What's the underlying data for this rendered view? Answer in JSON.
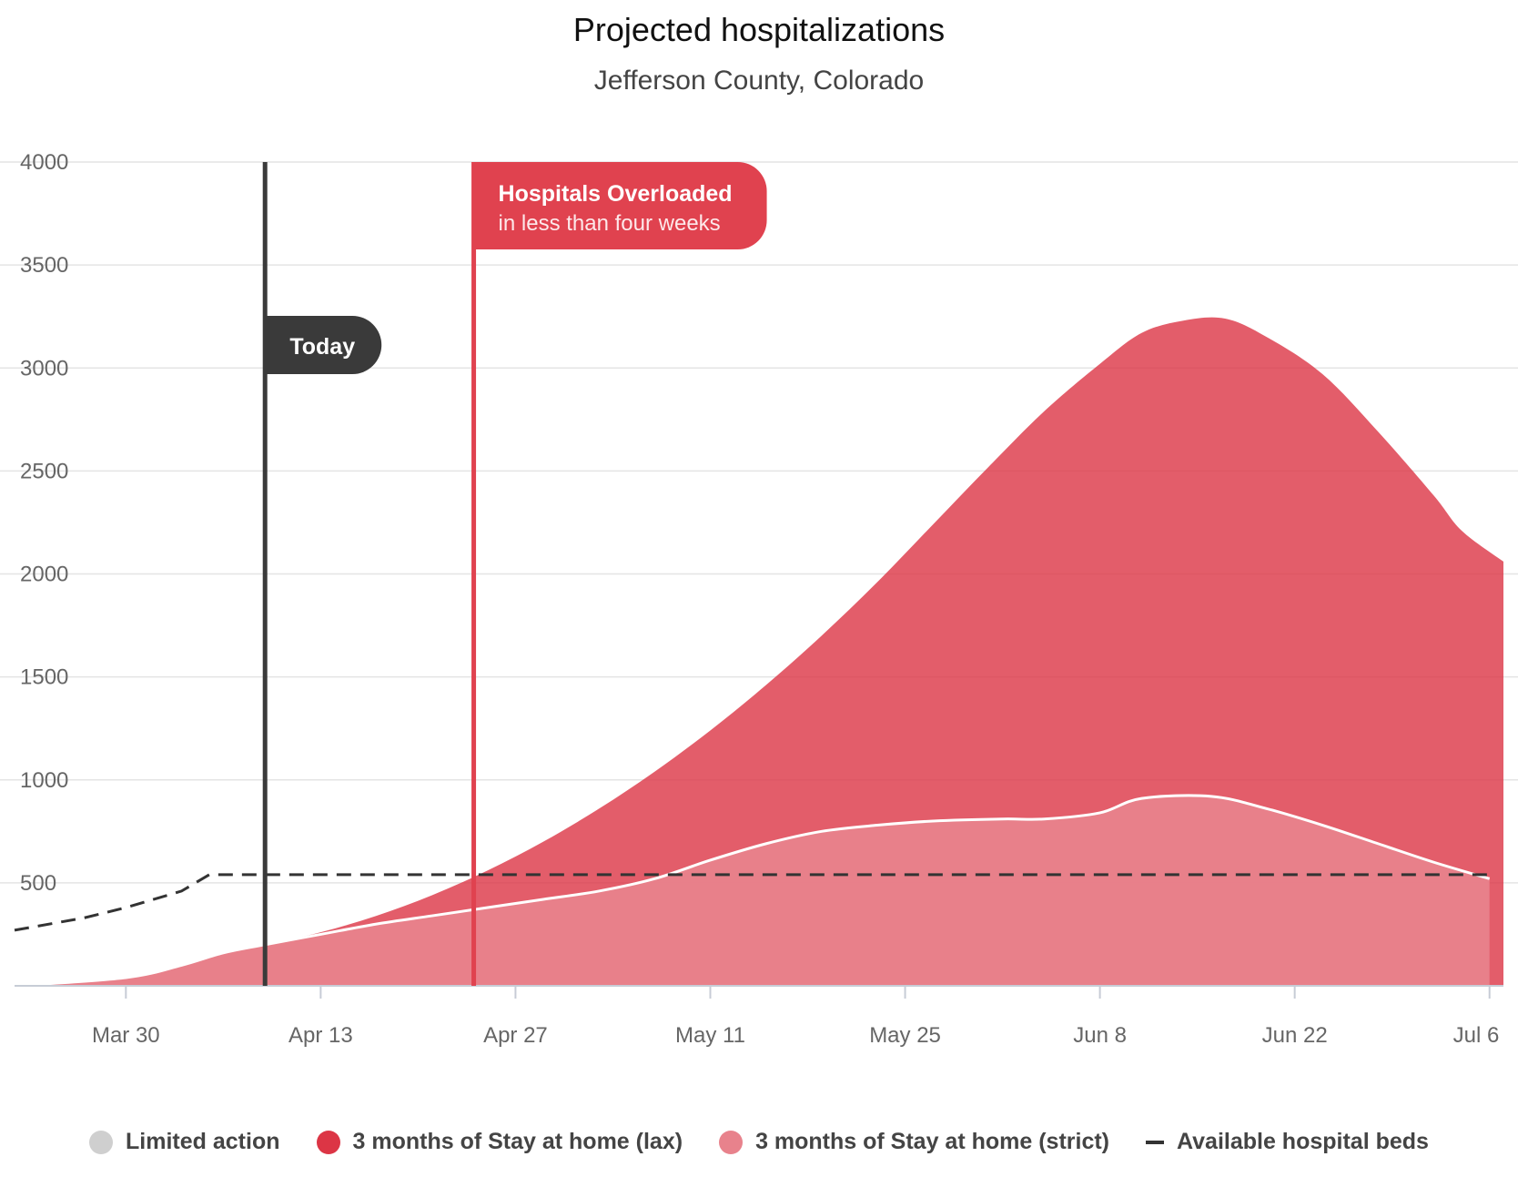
{
  "header": {
    "title": "Projected hospitalizations",
    "subtitle": "Jefferson County, Colorado"
  },
  "markers": {
    "today": {
      "label": "Today",
      "date": "Apr 9",
      "color": "#3a3a3a"
    },
    "overloaded": {
      "label": "Hospitals Overloaded",
      "sublabel": "in less than four weeks",
      "date": "Apr 24",
      "color": "#e0424f"
    }
  },
  "legend": [
    {
      "label": "Limited action",
      "color": "#cfcfcf",
      "shape": "circle"
    },
    {
      "label": "3 months of Stay at home (lax)",
      "color": "#dc3545",
      "shape": "circle"
    },
    {
      "label": "3 months of Stay at home (strict)",
      "color": "#e8828c",
      "shape": "circle"
    },
    {
      "label": "Available hospital beds",
      "color": "#333333",
      "shape": "dash"
    }
  ],
  "chart_data": {
    "type": "area",
    "x_ticks": [
      "Mar 30",
      "Apr 13",
      "Apr 27",
      "May 11",
      "May 25",
      "Jun 8",
      "Jun 22",
      "Jul 6"
    ],
    "y_ticks": [
      500,
      1000,
      1500,
      2000,
      2500,
      3000,
      3500,
      4000
    ],
    "ylim": [
      0,
      4000
    ],
    "xlim": [
      "Mar 22",
      "Jul 7"
    ],
    "grid": true,
    "legend_position": "bottom",
    "series": [
      {
        "name": "3 months of Stay at home (lax)",
        "color": "#dc3545",
        "points": [
          [
            "Mar 22",
            0
          ],
          [
            "Mar 30",
            40
          ],
          [
            "Apr 3",
            100
          ],
          [
            "Apr 6",
            160
          ],
          [
            "Apr 9",
            200
          ],
          [
            "Apr 13",
            260
          ],
          [
            "Apr 17",
            340
          ],
          [
            "Apr 21",
            440
          ],
          [
            "Apr 25",
            560
          ],
          [
            "Apr 29",
            700
          ],
          [
            "May 3",
            860
          ],
          [
            "May 7",
            1040
          ],
          [
            "May 11",
            1240
          ],
          [
            "May 15",
            1460
          ],
          [
            "May 19",
            1700
          ],
          [
            "May 23",
            1960
          ],
          [
            "May 27",
            2240
          ],
          [
            "May 31",
            2520
          ],
          [
            "Jun 4",
            2790
          ],
          [
            "Jun 8",
            3020
          ],
          [
            "Jun 11",
            3170
          ],
          [
            "Jun 14",
            3230
          ],
          [
            "Jun 17",
            3240
          ],
          [
            "Jun 20",
            3150
          ],
          [
            "Jun 24",
            2970
          ],
          [
            "Jun 28",
            2690
          ],
          [
            "Jul 2",
            2380
          ],
          [
            "Jul 4",
            2210
          ],
          [
            "Jul 7",
            2060
          ]
        ]
      },
      {
        "name": "3 months of Stay at home (strict)",
        "color": "#e8828c",
        "points": [
          [
            "Mar 22",
            0
          ],
          [
            "Mar 30",
            40
          ],
          [
            "Apr 3",
            100
          ],
          [
            "Apr 6",
            160
          ],
          [
            "Apr 9",
            200
          ],
          [
            "Apr 13",
            250
          ],
          [
            "Apr 17",
            300
          ],
          [
            "Apr 21",
            340
          ],
          [
            "Apr 25",
            380
          ],
          [
            "Apr 29",
            420
          ],
          [
            "May 3",
            460
          ],
          [
            "May 7",
            520
          ],
          [
            "May 11",
            610
          ],
          [
            "May 15",
            690
          ],
          [
            "May 19",
            750
          ],
          [
            "May 23",
            780
          ],
          [
            "May 27",
            800
          ],
          [
            "Jun 1",
            810
          ],
          [
            "Jun 4",
            810
          ],
          [
            "Jun 8",
            840
          ],
          [
            "Jun 11",
            910
          ],
          [
            "Jun 16",
            920
          ],
          [
            "Jun 20",
            860
          ],
          [
            "Jun 24",
            780
          ],
          [
            "Jun 28",
            690
          ],
          [
            "Jul 2",
            600
          ],
          [
            "Jul 6",
            520
          ]
        ]
      },
      {
        "name": "Available hospital beds",
        "color": "#333333",
        "style": "dashed",
        "points": [
          [
            "Mar 22",
            270
          ],
          [
            "Mar 27",
            330
          ],
          [
            "Mar 30",
            380
          ],
          [
            "Apr 3",
            460
          ],
          [
            "Apr 5",
            540
          ],
          [
            "Jul 6",
            540
          ]
        ]
      }
    ]
  }
}
